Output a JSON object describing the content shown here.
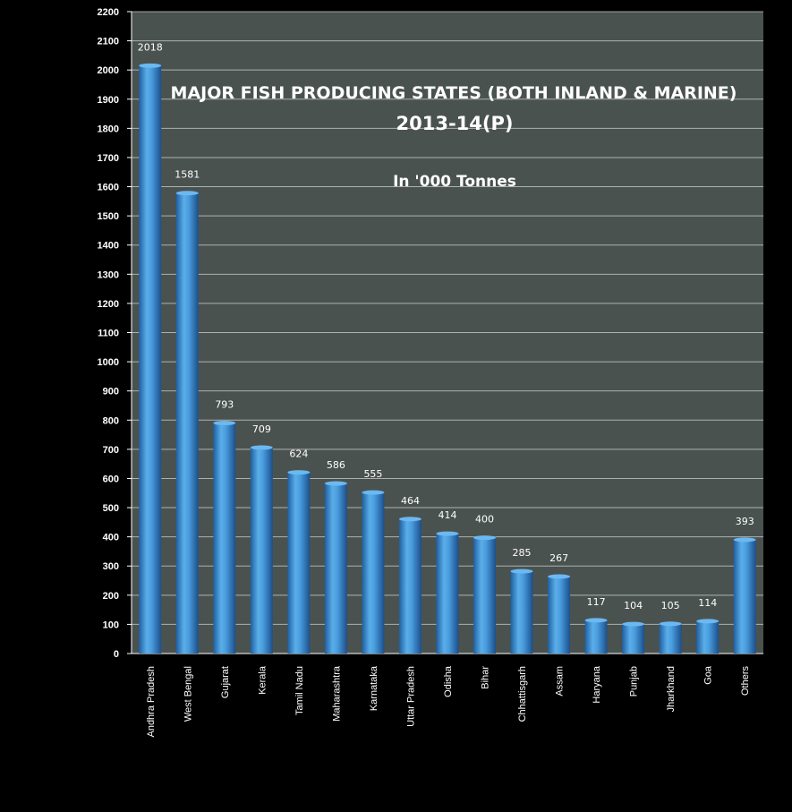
{
  "chart_data": {
    "type": "bar",
    "title": "MAJOR FISH PRODUCING STATES (BOTH INLAND & MARINE)",
    "title_line2": "2013-14(P)",
    "subtitle": "In '000 Tonnes",
    "categories": [
      "Andhra Pradesh",
      "West Bengal",
      "Gujarat",
      "Kerala",
      "Tamil Nadu",
      "Maharashtra",
      "Karnataka",
      "Uttar Pradesh",
      "Odisha",
      "Bihar",
      "Chhattisgarh",
      "Assam",
      "Haryana",
      "Punjab",
      "Jharkhand",
      "Goa",
      "Others"
    ],
    "values": [
      2018,
      1581,
      793,
      709,
      624,
      586,
      555,
      464,
      414,
      400,
      285,
      267,
      117,
      104,
      105,
      114,
      393
    ],
    "ylim": [
      0,
      2200
    ],
    "ytick_step": 100,
    "grid": true,
    "legend": "none",
    "colors": {
      "plot_background": "#4a5250",
      "bar": "#2a7fcc",
      "bar_light": "#6cb8f0",
      "gridline": "#ffffff"
    }
  }
}
